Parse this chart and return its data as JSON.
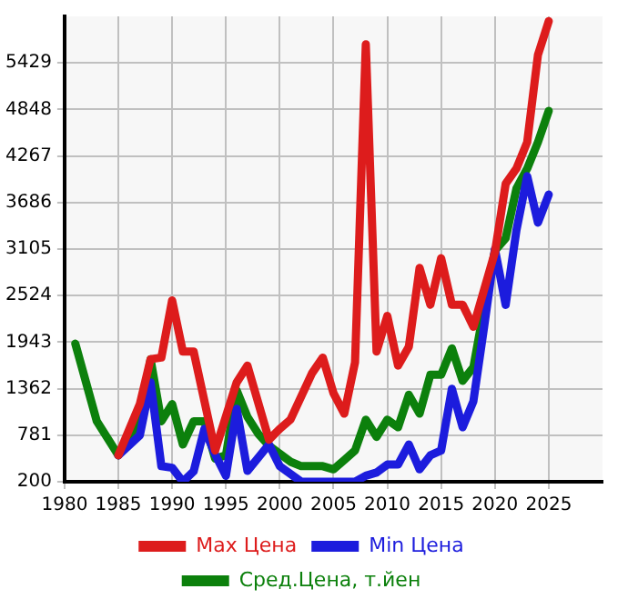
{
  "chart_data": {
    "type": "line",
    "xlim": [
      1980,
      2030
    ],
    "xticks": [
      1980,
      1985,
      1990,
      1995,
      2000,
      2005,
      2010,
      2015,
      2020,
      2025
    ],
    "ylim": [
      200,
      6010
    ],
    "yticks": [
      200,
      781,
      1362,
      1943,
      2524,
      3105,
      3686,
      4267,
      4848,
      5429
    ],
    "grid": true,
    "legend": "bottom",
    "marker": "none",
    "line_style": "solid",
    "series": [
      {
        "name": "Max Цена",
        "color": "#dd1c1c",
        "x": [
          1985,
          1987,
          1988,
          1989,
          1990,
          1991,
          1992,
          1994,
          1996,
          1997,
          1999,
          2000,
          2001,
          2003,
          2004,
          2005,
          2006,
          2007,
          2008,
          2009,
          2010,
          2011,
          2012,
          2013,
          2014,
          2015,
          2016,
          2017,
          2018,
          2019,
          2020,
          2021,
          2022,
          2023,
          2024,
          2025
        ],
        "values": [
          530,
          1170,
          1730,
          1750,
          2465,
          1825,
          1825,
          590,
          1440,
          1650,
          725,
          860,
          975,
          1555,
          1750,
          1305,
          1050,
          1690,
          5660,
          1825,
          2270,
          1650,
          1885,
          2870,
          2410,
          2990,
          2410,
          2410,
          2135,
          2600,
          3065,
          3920,
          4110,
          4440,
          5530,
          5950
        ]
      },
      {
        "name": "Min Цена",
        "color": "#1c1cdd",
        "x": [
          1985,
          1987,
          1988,
          1989,
          1990,
          1991,
          1992,
          1993,
          1994,
          1995,
          1996,
          1997,
          1999,
          2000,
          2002,
          2004,
          2005,
          2006,
          2007,
          2008,
          2009,
          2010,
          2011,
          2012,
          2013,
          2014,
          2015,
          2016,
          2017,
          2018,
          2019,
          2020,
          2021,
          2022,
          2023,
          2024,
          2025
        ],
        "values": [
          530,
          780,
          1440,
          395,
          375,
          200,
          330,
          860,
          540,
          275,
          1110,
          335,
          665,
          395,
          200,
          200,
          200,
          200,
          200,
          275,
          315,
          415,
          415,
          665,
          355,
          530,
          590,
          1360,
          880,
          1205,
          2135,
          3105,
          2408,
          3338,
          4015,
          3435,
          3785
        ]
      },
      {
        "name": "Сред.Цена, т.йен",
        "color": "#0c800c",
        "x": [
          1981,
          1983,
          1985,
          1987,
          1988,
          1989,
          1990,
          1991,
          1992,
          1993,
          1994,
          1995,
          1996,
          1997,
          1998,
          1999,
          2000,
          2001,
          2002,
          2003,
          2004,
          2005,
          2006,
          2007,
          2008,
          2009,
          2010,
          2011,
          2012,
          2013,
          2014,
          2015,
          2016,
          2017,
          2018,
          2019,
          2020,
          2021,
          2022,
          2023,
          2024,
          2025
        ],
        "values": [
          1924,
          955,
          530,
          975,
          1730,
          955,
          1170,
          665,
          955,
          955,
          490,
          530,
          1340,
          1010,
          800,
          650,
          550,
          450,
          395,
          395,
          395,
          355,
          470,
          590,
          975,
          760,
          975,
          880,
          1285,
          1050,
          1535,
          1535,
          1865,
          1460,
          1630,
          2370,
          3085,
          3240,
          3860,
          4110,
          4440,
          4830
        ]
      }
    ]
  }
}
